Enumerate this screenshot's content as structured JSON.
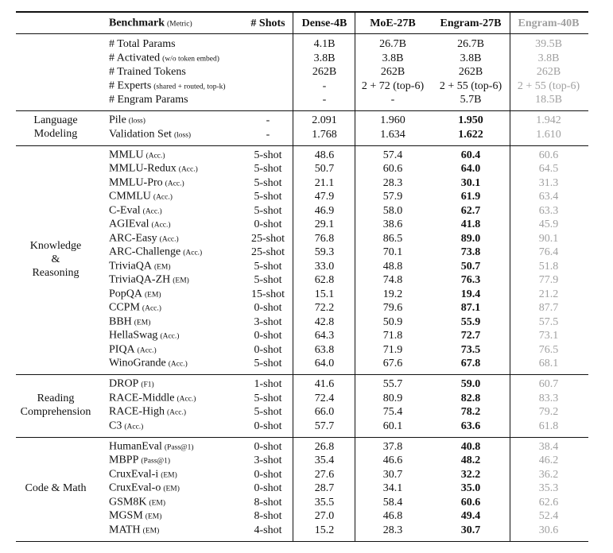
{
  "table": {
    "header": {
      "benchmark": "Benchmark",
      "metric": "(Metric)",
      "shots": "# Shots",
      "models": [
        "Dense-4B",
        "MoE-27B",
        "Engram-27B",
        "Engram-40B"
      ]
    },
    "sections": [
      {
        "rows": [
          {
            "name": "# Total Params",
            "values": [
              "4.1B",
              "26.7B",
              "26.7B",
              "39.5B"
            ]
          },
          {
            "name": "# Activated",
            "metric": "(w/o token embed)",
            "values": [
              "3.8B",
              "3.8B",
              "3.8B",
              "3.8B"
            ]
          },
          {
            "name": "# Trained Tokens",
            "values": [
              "262B",
              "262B",
              "262B",
              "262B"
            ]
          },
          {
            "name": "# Experts",
            "metric": "(shared + routed, top-k)",
            "values": [
              "-",
              "2 + 72 (top-6)",
              "2 + 55 (top-6)",
              "2 + 55 (top-6)"
            ]
          },
          {
            "name": "# Engram Params",
            "values": [
              "-",
              "-",
              "5.7B",
              "18.5B"
            ]
          }
        ]
      },
      {
        "label": [
          "Language",
          "Modeling"
        ],
        "rows": [
          {
            "name": "Pile",
            "metric": "(loss)",
            "shots": "-",
            "values": [
              "2.091",
              "1.960",
              "1.950",
              "1.942"
            ]
          },
          {
            "name": "Validation Set",
            "metric": "(loss)",
            "shots": "-",
            "values": [
              "1.768",
              "1.634",
              "1.622",
              "1.610"
            ]
          }
        ]
      },
      {
        "label": [
          "Knowledge",
          "&",
          "Reasoning"
        ],
        "rows": [
          {
            "name": "MMLU",
            "metric": "(Acc.)",
            "shots": "5-shot",
            "values": [
              "48.6",
              "57.4",
              "60.4",
              "60.6"
            ]
          },
          {
            "name": "MMLU-Redux",
            "metric": "(Acc.)",
            "shots": "5-shot",
            "values": [
              "50.7",
              "60.6",
              "64.0",
              "64.5"
            ]
          },
          {
            "name": "MMLU-Pro",
            "metric": "(Acc.)",
            "shots": "5-shot",
            "values": [
              "21.1",
              "28.3",
              "30.1",
              "31.3"
            ]
          },
          {
            "name": "CMMLU",
            "metric": "(Acc.)",
            "shots": "5-shot",
            "values": [
              "47.9",
              "57.9",
              "61.9",
              "63.4"
            ]
          },
          {
            "name": "C-Eval",
            "metric": "(Acc.)",
            "shots": "5-shot",
            "values": [
              "46.9",
              "58.0",
              "62.7",
              "63.3"
            ]
          },
          {
            "name": "AGIEval",
            "metric": "(Acc.)",
            "shots": "0-shot",
            "values": [
              "29.1",
              "38.6",
              "41.8",
              "45.9"
            ]
          },
          {
            "name": "ARC-Easy",
            "metric": "(Acc.)",
            "shots": "25-shot",
            "values": [
              "76.8",
              "86.5",
              "89.0",
              "90.1"
            ]
          },
          {
            "name": "ARC-Challenge",
            "metric": "(Acc.)",
            "shots": "25-shot",
            "values": [
              "59.3",
              "70.1",
              "73.8",
              "76.4"
            ]
          },
          {
            "name": "TriviaQA",
            "metric": "(EM)",
            "shots": "5-shot",
            "values": [
              "33.0",
              "48.8",
              "50.7",
              "51.8"
            ]
          },
          {
            "name": "TriviaQA-ZH",
            "metric": "(EM)",
            "shots": "5-shot",
            "values": [
              "62.8",
              "74.8",
              "76.3",
              "77.9"
            ]
          },
          {
            "name": "PopQA",
            "metric": "(EM)",
            "shots": "15-shot",
            "values": [
              "15.1",
              "19.2",
              "19.4",
              "21.2"
            ]
          },
          {
            "name": "CCPM",
            "metric": "(Acc.)",
            "shots": "0-shot",
            "values": [
              "72.2",
              "79.6",
              "87.1",
              "87.7"
            ]
          },
          {
            "name": "BBH",
            "metric": "(EM)",
            "shots": "3-shot",
            "values": [
              "42.8",
              "50.9",
              "55.9",
              "57.5"
            ]
          },
          {
            "name": "HellaSwag",
            "metric": "(Acc.)",
            "shots": "0-shot",
            "values": [
              "64.3",
              "71.8",
              "72.7",
              "73.1"
            ]
          },
          {
            "name": "PIQA",
            "metric": "(Acc.)",
            "shots": "0-shot",
            "values": [
              "63.8",
              "71.9",
              "73.5",
              "76.5"
            ]
          },
          {
            "name": "WinoGrande",
            "metric": "(Acc.)",
            "shots": "5-shot",
            "values": [
              "64.0",
              "67.6",
              "67.8",
              "68.1"
            ]
          }
        ]
      },
      {
        "label": [
          "Reading",
          "Comprehension"
        ],
        "rows": [
          {
            "name": "DROP",
            "metric": "(F1)",
            "shots": "1-shot",
            "values": [
              "41.6",
              "55.7",
              "59.0",
              "60.7"
            ]
          },
          {
            "name": "RACE-Middle",
            "metric": "(Acc.)",
            "shots": "5-shot",
            "values": [
              "72.4",
              "80.9",
              "82.8",
              "83.3"
            ]
          },
          {
            "name": "RACE-High",
            "metric": "(Acc.)",
            "shots": "5-shot",
            "values": [
              "66.0",
              "75.4",
              "78.2",
              "79.2"
            ]
          },
          {
            "name": "C3",
            "metric": "(Acc.)",
            "shots": "0-shot",
            "values": [
              "57.7",
              "60.1",
              "63.6",
              "61.8"
            ]
          }
        ]
      },
      {
        "label": [
          "Code & Math"
        ],
        "rows": [
          {
            "name": "HumanEval",
            "metric": "(Pass@1)",
            "shots": "0-shot",
            "values": [
              "26.8",
              "37.8",
              "40.8",
              "38.4"
            ]
          },
          {
            "name": "MBPP",
            "metric": "(Pass@1)",
            "shots": "3-shot",
            "values": [
              "35.4",
              "46.6",
              "48.2",
              "46.2"
            ]
          },
          {
            "name": "CruxEval-i",
            "metric": "(EM)",
            "shots": "0-shot",
            "values": [
              "27.6",
              "30.7",
              "32.2",
              "36.2"
            ]
          },
          {
            "name": "CruxEval-o",
            "metric": "(EM)",
            "shots": "0-shot",
            "values": [
              "28.7",
              "34.1",
              "35.0",
              "35.3"
            ]
          },
          {
            "name": "GSM8K",
            "metric": "(EM)",
            "shots": "8-shot",
            "values": [
              "35.5",
              "58.4",
              "60.6",
              "62.6"
            ]
          },
          {
            "name": "MGSM",
            "metric": "(EM)",
            "shots": "8-shot",
            "values": [
              "27.0",
              "46.8",
              "49.4",
              "52.4"
            ]
          },
          {
            "name": "MATH",
            "metric": "(EM)",
            "shots": "4-shot",
            "values": [
              "15.2",
              "28.3",
              "30.7",
              "30.6"
            ]
          }
        ]
      }
    ]
  }
}
